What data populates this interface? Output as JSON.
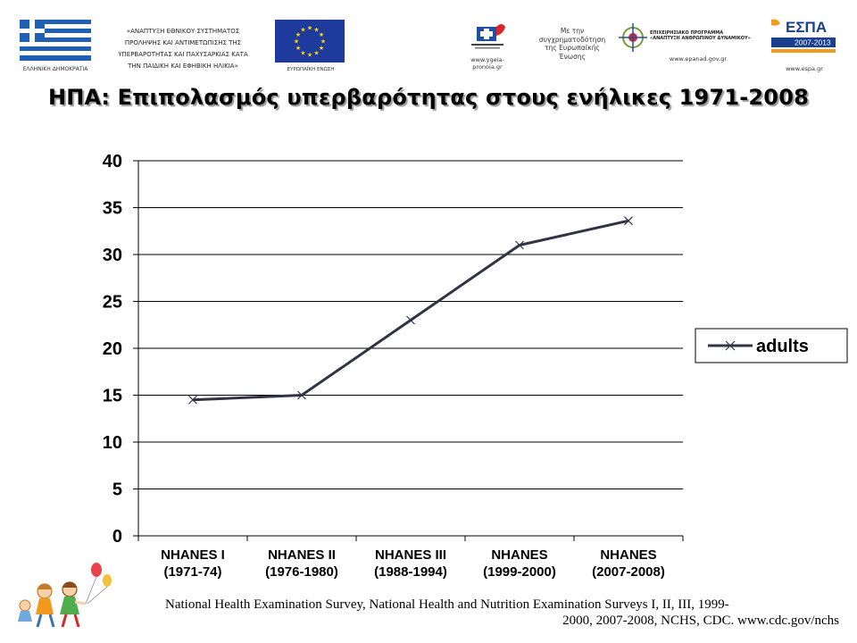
{
  "header": {
    "ministry_text": "«ΑΝΑΠΤΥΞΗ ΕΘΝΙΚΟΥ ΣΥΣΤΗΜΑΤΟΣ ΠΡΟΛΗΨΗΣ ΚΑΙ ΑΝΤΙΜΕΤΩΠΙΣΗΣ ΤΗΣ ΥΠΕΡΒΑΡΟΤΗΤΑΣ ΚΑΙ ΠΑΧΥΣΑΡΚΙΑΣ ΚΑΤΑ ΤΗΝ ΠΑΙΔΙΚΗ ΚΑΙ ΕΦΗΒΙΚΗ ΗΛΙΚΙΑ»",
    "ministry_lines": [
      "«ΑΝΑΠΤΥΞΗ ΕΘΝΙΚΟΥ ΣΥΣΤΗΜΑΤΟΣ",
      "ΠΡΟΛΗΨΗΣ ΚΑΙ ΑΝΤΙΜΕΤΩΠΙΣΗΣ ΤΗΣ",
      "ΥΠΕΡΒΑΡΟΤΗΤΑΣ ΚΑΙ ΠΑΧΥΣΑΡΚΙΑΣ ΚΑΤΑ",
      "ΤΗΝ ΠΑΙΔΙΚΗ ΚΑΙ ΕΦΗΒΙΚΗ ΗΛΙΚΙΑ»"
    ],
    "greek_flag_caption": "ΕΛΛΗΝΙΚΗ ΔΗΜΟΚΡΑΤΙΑ",
    "eu_flag_caption": "ΕΥΡΩΠΑΪΚΗ ΕΝΩΣΗ",
    "ygeia_url": "www.ygeia-pronoia.gr",
    "eu_cofinance_lines": [
      "Με την",
      "συγχρηματοδότηση",
      "της Ευρωπαϊκής",
      "Ένωσης"
    ],
    "epaned_title_lines": [
      "ΕΠΙΧΕΙΡΗΣΙΑΚΟ ΠΡΟΓΡΑΜΜΑ",
      "«ΑΝΑΠΤΥΞΗ ΑΝΘΡΩΠΙΝΟΥ ΔΥΝΑΜΙΚΟΥ»"
    ],
    "epaned_url": "www.epanad.gov.gr",
    "espa_logo_text": "ΕΣΠΑ",
    "espa_years": "2007-2013",
    "espa_url": "www.espa.gr"
  },
  "title": "ΗΠΑ: Επιπολασμός υπερβαρότητας στους ενήλικες 1971-2008",
  "chart_data": {
    "type": "line",
    "categories": [
      [
        "NHANES I",
        "(1971-74)"
      ],
      [
        "NHANES II",
        "(1976-1980)"
      ],
      [
        "NHANES III",
        "(1988-1994)"
      ],
      [
        "NHANES",
        "(1999-2000)"
      ],
      [
        "NHANES",
        "(2007-2008)"
      ]
    ],
    "series": [
      {
        "name": "adults",
        "values": [
          14.5,
          15.0,
          23.0,
          31.0,
          33.6
        ],
        "color": "#333344",
        "marker": "x"
      }
    ],
    "ylim": [
      0,
      40
    ],
    "yticks": [
      0,
      5,
      10,
      15,
      20,
      25,
      30,
      35,
      40
    ],
    "grid": true,
    "legend_position": "right"
  },
  "source": {
    "line1": "National Health Examination Survey, National Health and Nutrition Examination Surveys I, II, III, 1999-",
    "line2": "2000, 2007-2008, NCHS, CDC. www.cdc.gov/nchs"
  },
  "colors": {
    "greek_blue": "#1f5fb4",
    "eu_blue": "#1d3a9c",
    "eu_star": "#ffd700",
    "espa_blue": "#1a3f8f",
    "espa_orange": "#f29a1d",
    "line": "#333344"
  }
}
